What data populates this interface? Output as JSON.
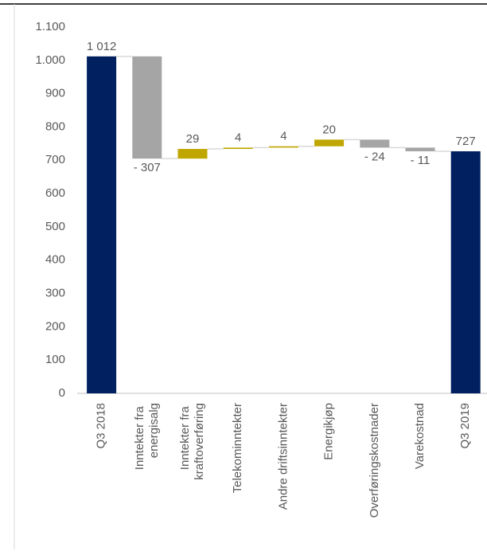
{
  "chart_data": {
    "type": "waterfall",
    "categories": [
      "Q3 2018",
      "Inntekter fra energisalg",
      "Inntekter fra kraftoverføring",
      "Telekominntekter",
      "Andre driftsinntekter",
      "Energikjøp",
      "Overføringskostnader",
      "Varekostnad",
      "Q3 2019"
    ],
    "values": [
      1012,
      -307,
      29,
      4,
      4,
      20,
      -24,
      -11,
      727
    ],
    "value_labels": [
      "1 012",
      "- 307",
      "29",
      "4",
      "4",
      "20",
      "- 24",
      "- 11",
      "727"
    ],
    "totals": [
      0,
      8
    ],
    "colors": {
      "total": "#002060",
      "increase": "#bfa600",
      "decrease": "#a5a5a5"
    },
    "ylim": [
      0,
      1100
    ],
    "yticks": [
      0,
      100,
      200,
      300,
      400,
      500,
      600,
      700,
      800,
      900,
      {
        "value": 1000,
        "label": "1.000"
      },
      {
        "value": 1100,
        "label": "1.100"
      }
    ]
  }
}
